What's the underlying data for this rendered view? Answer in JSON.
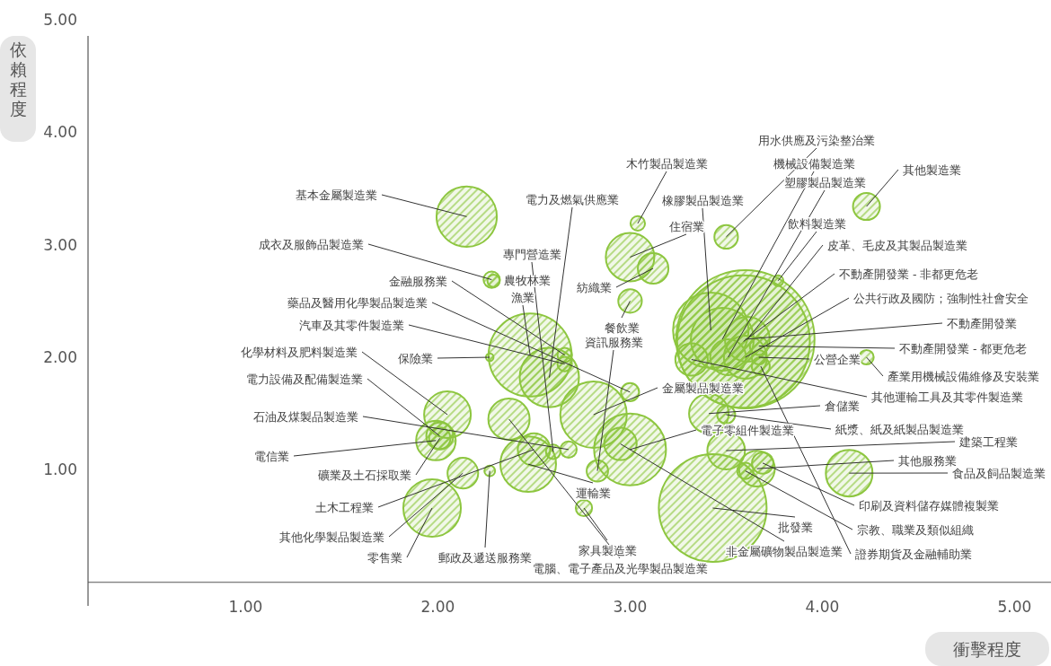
{
  "chart_data": {
    "type": "bubble",
    "xlabel": "衝擊程度",
    "ylabel": "依賴程度",
    "color": "#8dc63f",
    "xlim": [
      0.18,
      5.19
    ],
    "ylim": [
      -0.05,
      5
    ],
    "xticks": [
      {
        "value": 1,
        "label": "1.00"
      },
      {
        "value": 2,
        "label": "2.00"
      },
      {
        "value": 3,
        "label": "3.00"
      },
      {
        "value": 4,
        "label": "4.00"
      },
      {
        "value": 5,
        "label": "5.00"
      }
    ],
    "yticks": [
      {
        "value": 1,
        "label": "1.00"
      },
      {
        "value": 2,
        "label": "2.00"
      },
      {
        "value": 3,
        "label": "3.00"
      },
      {
        "value": 4,
        "label": "4.00"
      },
      {
        "value": 5,
        "label": "5.00"
      }
    ],
    "x": [
      2.15,
      2.28,
      2.29,
      2.48,
      2.66,
      3.0,
      2.66,
      2.05,
      2.27,
      2.01,
      2.68,
      1.99,
      2.01,
      2.5,
      2.13,
      1.97,
      2.27,
      2.37,
      2.6,
      2.58,
      2.47,
      2.81,
      3.0,
      2.95,
      2.83,
      2.76,
      3.43,
      3.0,
      3.0,
      3.12,
      3.04,
      3.5,
      3.6,
      3.59,
      3.42,
      3.48,
      3.51,
      3.77,
      3.61,
      3.6,
      3.67,
      3.67,
      3.32,
      3.68,
      3.41,
      3.5,
      3.5,
      3.66,
      3.69,
      3.6,
      4.14,
      4.23,
      4.23
    ],
    "values": [
      3.25,
      2.69,
      2.68,
      2.02,
      2.02,
      1.69,
      1.94,
      1.49,
      2.0,
      1.3,
      1.18,
      1.26,
      1.28,
      1.18,
      0.97,
      0.66,
      0.99,
      1.45,
      1.16,
      1.82,
      1.05,
      1.49,
      1.18,
      1.23,
      0.99,
      0.66,
      0.66,
      2.5,
      2.89,
      2.79,
      3.19,
      3.07,
      2.16,
      2.14,
      2.24,
      2.16,
      2.0,
      2.68,
      2.16,
      2.0,
      2.1,
      2.0,
      1.98,
      1.92,
      1.5,
      1.49,
      1.17,
      1.01,
      1.06,
      0.99,
      0.97,
      3.34,
      2.0
    ],
    "sizes": [
      0.19,
      0.014,
      0.008,
      0.36,
      0.011,
      0.017,
      0.011,
      0.114,
      0.003,
      0.038,
      0.014,
      0.082,
      0.024,
      0.055,
      0.049,
      0.173,
      0.006,
      0.089,
      0.011,
      0.184,
      0.162,
      0.231,
      0.27,
      0.055,
      0.024,
      0.014,
      0.607,
      0.029,
      0.123,
      0.049,
      0.011,
      0.029,
      1,
      0.92,
      0.298,
      0.207,
      0.067,
      0.006,
      0.105,
      0.097,
      0.017,
      0.011,
      0.055,
      0.017,
      0.082,
      0.017,
      0.074,
      0.067,
      0.024,
      0.014,
      0.114,
      0.038,
      0.011
    ],
    "annotations": [
      {
        "text": "基本金屬製造業",
        "x": 2.15,
        "y": 3.25
      },
      {
        "text": "成衣及服飾品製造業",
        "x": 2.28,
        "y": 2.69
      },
      {
        "text": "農牧林業",
        "x": 2.29,
        "y": 2.68
      },
      {
        "text": "漁業",
        "x": 2.48,
        "y": 2.02
      },
      {
        "text": "金融服務業",
        "x": 2.66,
        "y": 2.02
      },
      {
        "text": "藥品及醫用化學製品製造業",
        "x": 3.0,
        "y": 1.69
      },
      {
        "text": "汽車及其零件製造業",
        "x": 2.66,
        "y": 1.94
      },
      {
        "text": "化學材料及肥料製造業",
        "x": 2.05,
        "y": 1.49
      },
      {
        "text": "保險業",
        "x": 2.27,
        "y": 2.0
      },
      {
        "text": "電力設備及配備製造業",
        "x": 2.01,
        "y": 1.3
      },
      {
        "text": "石油及煤製品製造業",
        "x": 2.68,
        "y": 1.18
      },
      {
        "text": "電信業",
        "x": 1.99,
        "y": 1.26
      },
      {
        "text": "礦業及土石採取業",
        "x": 2.01,
        "y": 1.28
      },
      {
        "text": "土木工程業",
        "x": 2.5,
        "y": 1.18
      },
      {
        "text": "其他化學製品製造業",
        "x": 2.13,
        "y": 0.97
      },
      {
        "text": "零售業",
        "x": 1.97,
        "y": 0.66
      },
      {
        "text": "郵政及遞送服務業",
        "x": 2.27,
        "y": 0.99
      },
      {
        "text": "電腦、電子產品及光學製品製造業",
        "x": 2.37,
        "y": 1.45
      },
      {
        "text": "專門營造業",
        "x": 2.6,
        "y": 1.16
      },
      {
        "text": "電力及燃氣供應業",
        "x": 2.58,
        "y": 1.82
      },
      {
        "text": "運輸業",
        "x": 2.47,
        "y": 1.05
      },
      {
        "text": "金屬製品製造業",
        "x": 2.81,
        "y": 1.49
      },
      {
        "text": "電子零組件製造業",
        "x": 3.0,
        "y": 1.18
      },
      {
        "text": "非金屬礦物製品製造業",
        "x": 2.95,
        "y": 1.23
      },
      {
        "text": "資訊服務業",
        "x": 2.83,
        "y": 0.99
      },
      {
        "text": "家具製造業",
        "x": 2.76,
        "y": 0.66
      },
      {
        "text": "批發業",
        "x": 3.43,
        "y": 0.66
      },
      {
        "text": "餐飲業",
        "x": 3.0,
        "y": 2.5
      },
      {
        "text": "住宿業",
        "x": 3.0,
        "y": 2.89
      },
      {
        "text": "紡織業",
        "x": 3.12,
        "y": 2.79
      },
      {
        "text": "木竹製品製造業",
        "x": 3.04,
        "y": 3.19
      },
      {
        "text": "用水供應及污染整治業",
        "x": 3.5,
        "y": 3.07
      },
      {
        "text": "不動產開發業",
        "x": 3.6,
        "y": 2.16
      },
      {
        "text": "不動產開發業 - 非都更危老",
        "x": 3.59,
        "y": 2.14
      },
      {
        "text": "橡膠製品製造業",
        "x": 3.42,
        "y": 2.24
      },
      {
        "text": "機械設備製造業",
        "x": 3.48,
        "y": 2.16
      },
      {
        "text": "塑膠製品製造業",
        "x": 3.51,
        "y": 2.0
      },
      {
        "text": "飲料製造業",
        "x": 3.77,
        "y": 2.68
      },
      {
        "text": "皮革、毛皮及其製品製造業",
        "x": 3.61,
        "y": 2.16
      },
      {
        "text": "公共行政及國防；強制性社會安全",
        "x": 3.6,
        "y": 2.0
      },
      {
        "text": "不動產開發業 - 都更危老",
        "x": 3.67,
        "y": 2.1
      },
      {
        "text": "公營企業",
        "x": 3.67,
        "y": 2.0
      },
      {
        "text": "其他運輸工具及其零件製造業",
        "x": 3.32,
        "y": 1.98
      },
      {
        "text": "證券期貨及金融輔助業",
        "x": 3.68,
        "y": 1.92
      },
      {
        "text": "倉儲業",
        "x": 3.41,
        "y": 1.5
      },
      {
        "text": "紙漿、紙及紙製品製造業",
        "x": 3.5,
        "y": 1.49
      },
      {
        "text": "建築工程業",
        "x": 3.5,
        "y": 1.17
      },
      {
        "text": "其他服務業",
        "x": 3.66,
        "y": 1.01
      },
      {
        "text": "印刷及資料儲存媒體複製業",
        "x": 3.69,
        "y": 1.06
      },
      {
        "text": "宗教、職業及類似組織",
        "x": 3.6,
        "y": 0.99
      },
      {
        "text": "食品及飼品製造業",
        "x": 4.14,
        "y": 0.97
      },
      {
        "text": "其他製造業",
        "x": 4.23,
        "y": 3.34
      },
      {
        "text": "產業用機械設備維修及安裝業",
        "x": 4.23,
        "y": 2.0
      }
    ]
  }
}
